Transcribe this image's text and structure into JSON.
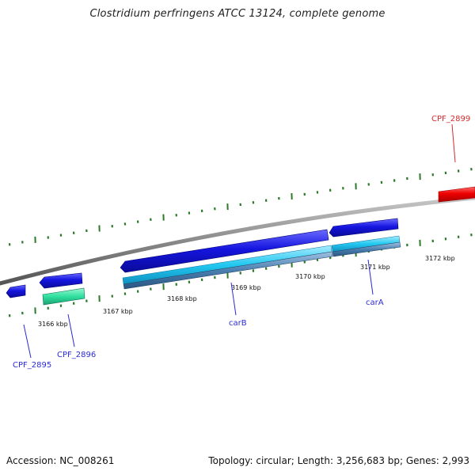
{
  "title": "Clostridium perfringens ATCC 13124, complete genome",
  "footer": {
    "accession": "Accession: NC_008261",
    "summary": "Topology: circular; Length: 3,256,683 bp; Genes: 2,993"
  },
  "scale_labels": [
    "3166 kbp",
    "3167 kbp",
    "3168 kbp",
    "3169 kbp",
    "3170 kbp",
    "3171 kbp",
    "3172 kbp"
  ],
  "genes": [
    {
      "name": "CPF_2895",
      "color": "#2b2bd6"
    },
    {
      "name": "CPF_2896",
      "color": "#2b2bd6"
    },
    {
      "name": "carB",
      "color": "#2b2bd6"
    },
    {
      "name": "carA",
      "color": "#2b2bd6"
    },
    {
      "name": "CPF_2899",
      "color": "#d62b2b"
    }
  ],
  "colors": {
    "forward_cds": "#ee0000",
    "reverse_cds": "#1111dd",
    "rna_teal": "#30e0a0",
    "protein_cyan": "#22c8f0",
    "protein_steel": "#4a7fb0",
    "backbone": "#8a8a8a",
    "tick": "#2a7a2a"
  }
}
